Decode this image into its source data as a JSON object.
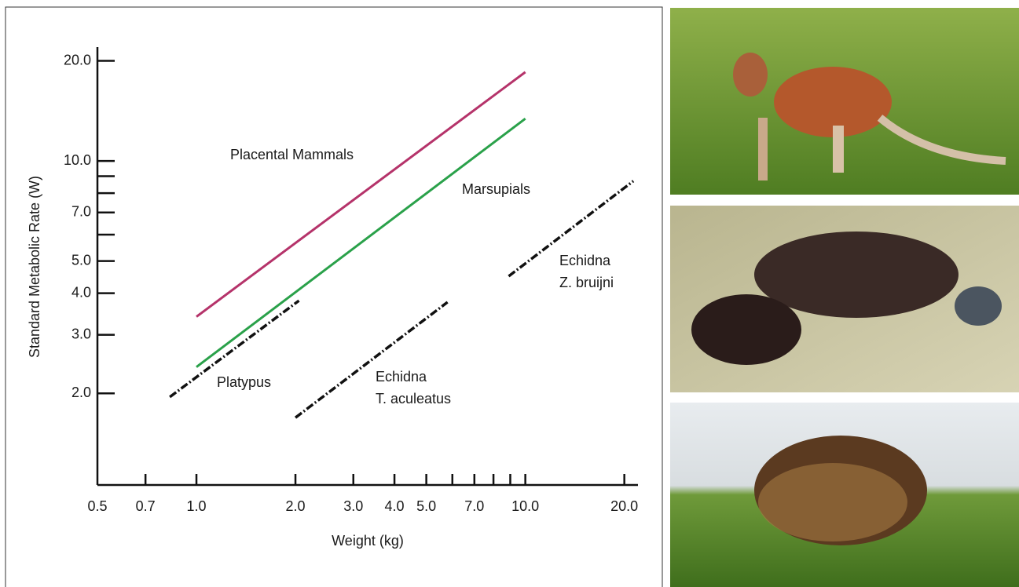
{
  "chart_data": {
    "type": "line",
    "x_label": "Weight (kg)",
    "y_label": "Standard Metabolic Rate (W)",
    "xscale": "log",
    "yscale": "log",
    "xlim": [
      0.5,
      22
    ],
    "ylim": [
      1.06,
      22
    ],
    "xticks": [
      {
        "value": 0.5,
        "label": "0.5"
      },
      {
        "value": 0.7,
        "label": "0.7"
      },
      {
        "value": 1,
        "label": "1.0"
      },
      {
        "value": 2,
        "label": "2.0"
      },
      {
        "value": 3,
        "label": "3.0"
      },
      {
        "value": 4,
        "label": "4.0"
      },
      {
        "value": 5,
        "label": "5.0"
      },
      {
        "value": 7,
        "label": "7.0"
      },
      {
        "value": 10,
        "label": "10.0"
      },
      {
        "value": 20,
        "label": "20.0"
      }
    ],
    "x_minor_ticks": [
      6,
      8,
      9
    ],
    "yticks": [
      {
        "value": 2,
        "label": "2.0"
      },
      {
        "value": 3,
        "label": "3.0"
      },
      {
        "value": 4,
        "label": "4.0"
      },
      {
        "value": 5,
        "label": "5.0"
      },
      {
        "value": 7,
        "label": "7.0"
      },
      {
        "value": 10,
        "label": "10.0"
      },
      {
        "value": 20,
        "label": "20.0"
      }
    ],
    "y_minor_ticks": [
      6,
      8,
      9
    ],
    "series": [
      {
        "name": "Placental Mammals",
        "color": "#b5336a",
        "style": "solid",
        "x": [
          1.0,
          10.0
        ],
        "values": [
          3.4,
          18.5
        ]
      },
      {
        "name": "Marsupials",
        "color": "#2aa14a",
        "style": "solid",
        "x": [
          1.0,
          10.0
        ],
        "values": [
          2.4,
          13.4
        ]
      },
      {
        "name": "Platypus",
        "color": "#111111",
        "style": "dashdot",
        "x": [
          0.83,
          2.05
        ],
        "values": [
          1.95,
          3.8
        ]
      },
      {
        "name": [
          "Echidna",
          "T. aculeatus"
        ],
        "color": "#111111",
        "style": "dashdot",
        "x": [
          2.0,
          5.8
        ],
        "values": [
          1.69,
          3.76
        ]
      },
      {
        "name": [
          "Echidna",
          "Z. bruijni"
        ],
        "color": "#111111",
        "style": "dashdot",
        "x": [
          8.9,
          21.3
        ],
        "values": [
          4.5,
          8.7
        ]
      }
    ]
  }
}
